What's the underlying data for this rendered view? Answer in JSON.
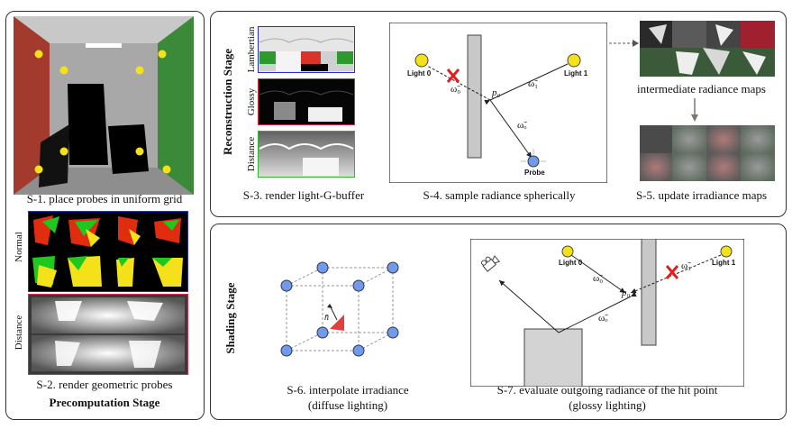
{
  "precomputation": {
    "stage_title": "Precomputation Stage",
    "s1_caption": "S-1. place probes in uniform grid",
    "s2_caption": "S-2. render geometric probes",
    "normal_label": "Normal",
    "distance_label": "Distance"
  },
  "reconstruction": {
    "stage_title": "Reconstruction Stage",
    "lambertian_label": "Lambertian",
    "glossy_label": "Glossy",
    "distance_label": "Distance",
    "s3_caption": "S-3. render light-G-buffer",
    "s4_caption": "S-4. sample radiance spherically",
    "s5_caption": "S-5. update irradiance maps",
    "intermediate_label": "intermediate radiance maps",
    "light0": "Light 0",
    "light1": "Light 1",
    "probe": "Probe",
    "omega0": "ω̃₀",
    "omega1": "ω̃₁",
    "omegao": "ω̃ₒ",
    "p0": "p₀"
  },
  "shading": {
    "stage_title": "Shading Stage",
    "s6_caption_line1": "S-6. interpolate irradiance",
    "s6_caption_line2": "(diffuse lighting)",
    "s7_caption_line1": "S-7. evaluate outgoing radiance of the hit point",
    "s7_caption_line2": "(glossy lighting)",
    "normal_symbol": "n̄",
    "light0": "Light 0",
    "light1": "Light 1",
    "omega0": "ω̃₀",
    "omega1": "ω̃₁",
    "omegao": "ω̃ₒ",
    "p0": "p₀"
  },
  "colors": {
    "probe_yellow": "#f5e11a",
    "probe_blue": "#6f9be8",
    "wall_red": "#c0392b",
    "wall_green": "#2e8b3a",
    "cross_red": "#e02020"
  }
}
